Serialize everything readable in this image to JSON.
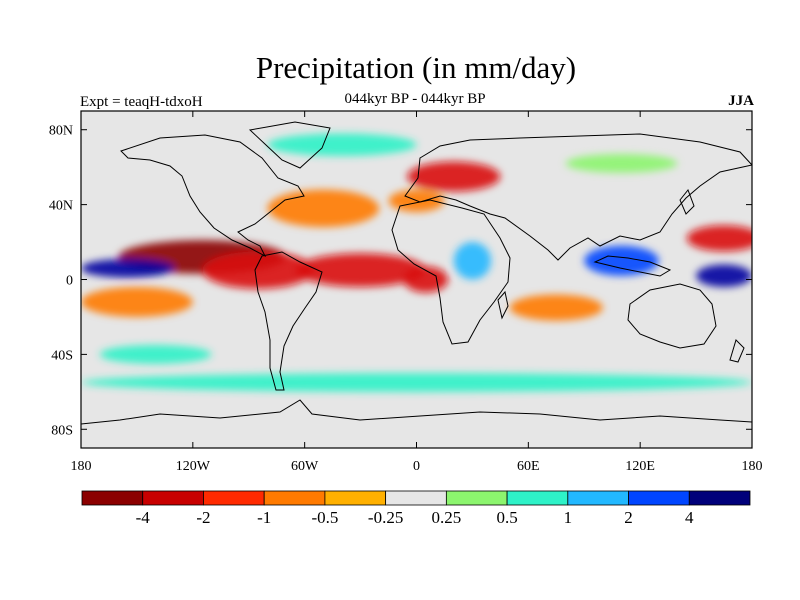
{
  "plot": {
    "title": "Precipitation (in mm/day)",
    "subtitle": "044kyr BP - 044kyr BP",
    "left_label": "Expt = teaqH-tdxoH",
    "right_label": "JJA"
  },
  "map": {
    "projection": "cylindrical-equidistant",
    "lon_range": [
      -180,
      180
    ],
    "lat_range": [
      -90,
      90
    ],
    "background_color": "#e6e6e6",
    "lon_ticks": [
      {
        "lon": -180,
        "label": "180"
      },
      {
        "lon": -120,
        "label": "120W"
      },
      {
        "lon": -60,
        "label": "60W"
      },
      {
        "lon": 0,
        "label": "0"
      },
      {
        "lon": 60,
        "label": "60E"
      },
      {
        "lon": 120,
        "label": "120E"
      },
      {
        "lon": 180,
        "label": "180"
      }
    ],
    "lat_ticks": [
      {
        "lat": 80,
        "label": "80N"
      },
      {
        "lat": 40,
        "label": "40N"
      },
      {
        "lat": 0,
        "label": "0"
      },
      {
        "lat": -40,
        "label": "40S"
      },
      {
        "lat": -80,
        "label": "80S"
      }
    ],
    "anomaly_regions": [
      {
        "name": "central-pacific-dry",
        "lon": -115,
        "lat": 12,
        "rx": 45,
        "ry": 9,
        "color": "#8b0000"
      },
      {
        "name": "east-pacific-dry",
        "lon": -85,
        "lat": 5,
        "rx": 30,
        "ry": 10,
        "color": "#d90d0d"
      },
      {
        "name": "atlantic-itcz-dry",
        "lon": -30,
        "lat": 5,
        "rx": 35,
        "ry": 9,
        "color": "#d90d0d"
      },
      {
        "name": "north-atlantic-dry",
        "lon": -50,
        "lat": 38,
        "rx": 30,
        "ry": 10,
        "color": "#ff7a00"
      },
      {
        "name": "west-africa-dry",
        "lon": 5,
        "lat": 0,
        "rx": 12,
        "ry": 7,
        "color": "#d90d0d"
      },
      {
        "name": "arabia-dry",
        "lon": 20,
        "lat": 55,
        "rx": 25,
        "ry": 8,
        "color": "#d90d0d"
      },
      {
        "name": "europe-dry",
        "lon": 0,
        "lat": 42,
        "rx": 15,
        "ry": 6,
        "color": "#ff7a00"
      },
      {
        "name": "nw-pacific-dry",
        "lon": 165,
        "lat": 22,
        "rx": 20,
        "ry": 7,
        "color": "#d90d0d"
      },
      {
        "name": "south-pacific-dry",
        "lon": -150,
        "lat": -12,
        "rx": 30,
        "ry": 8,
        "color": "#ff7a00"
      },
      {
        "name": "indian-ocean-dry",
        "lon": 75,
        "lat": -15,
        "rx": 25,
        "ry": 7,
        "color": "#ff7a00"
      },
      {
        "name": "maritime-wet",
        "lon": 110,
        "lat": 10,
        "rx": 20,
        "ry": 8,
        "color": "#0045ff"
      },
      {
        "name": "tropical-pacific-wet",
        "lon": -155,
        "lat": 6,
        "rx": 25,
        "ry": 5,
        "color": "#0000a0"
      },
      {
        "name": "west-pacific-wet",
        "lon": 165,
        "lat": 2,
        "rx": 15,
        "ry": 6,
        "color": "#0000a0"
      },
      {
        "name": "southern-ocean-wet",
        "lon": 0,
        "lat": -55,
        "rx": 180,
        "ry": 5,
        "color": "#2ef2c8"
      },
      {
        "name": "south-pacific-wet",
        "lon": -140,
        "lat": -40,
        "rx": 30,
        "ry": 5,
        "color": "#2ef2c8"
      },
      {
        "name": "arctic-wet",
        "lon": -40,
        "lat": 72,
        "rx": 40,
        "ry": 6,
        "color": "#2ef2c8"
      },
      {
        "name": "siberia-wet",
        "lon": 110,
        "lat": 62,
        "rx": 30,
        "ry": 5,
        "color": "#8cf56e"
      },
      {
        "name": "africa-wet",
        "lon": 30,
        "lat": 10,
        "rx": 10,
        "ry": 10,
        "color": "#22b8ff"
      }
    ]
  },
  "colorbar": {
    "colors": [
      "#8b0000",
      "#c80000",
      "#ff2a00",
      "#ff7a00",
      "#ffb000",
      "#e6e6e6",
      "#8cf56e",
      "#2ef2c8",
      "#22b8ff",
      "#0045ff",
      "#00007a"
    ],
    "labels": [
      "-4",
      "-2",
      "-1",
      "-0.5",
      "-0.25",
      "0.25",
      "0.5",
      "1",
      "2",
      "4"
    ]
  }
}
